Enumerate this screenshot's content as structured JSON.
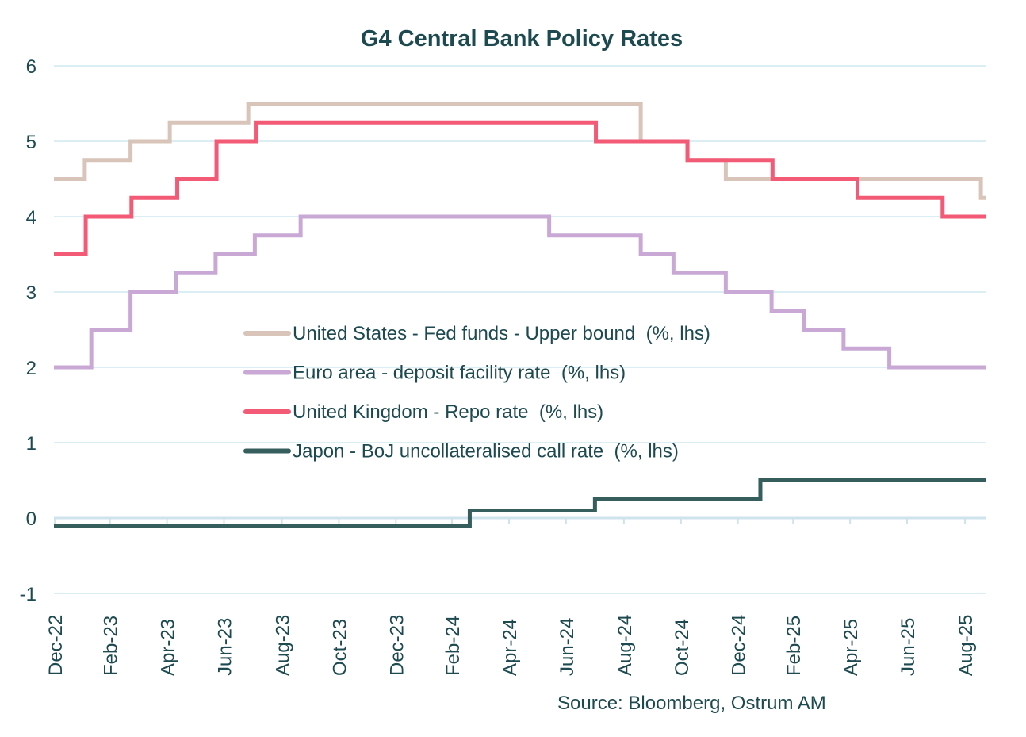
{
  "chart_data": {
    "type": "line",
    "step": true,
    "title": "G4 Central Bank Policy Rates",
    "source": "Source: Bloomberg, Ostrum AM",
    "xlabel": "",
    "ylabel": "",
    "xlim": [
      "2022-12-30",
      "2025-09-22"
    ],
    "ylim": [
      -1,
      6
    ],
    "y_ticks": [
      6,
      5,
      4,
      3,
      2,
      1,
      0,
      -1
    ],
    "x_ticks": [
      {
        "date": "2022-12-31",
        "label": "Dec-22"
      },
      {
        "date": "2023-02-28",
        "label": "Feb-23"
      },
      {
        "date": "2023-04-30",
        "label": "Apr-23"
      },
      {
        "date": "2023-06-30",
        "label": "Jun-23"
      },
      {
        "date": "2023-08-31",
        "label": "Aug-23"
      },
      {
        "date": "2023-10-31",
        "label": "Oct-23"
      },
      {
        "date": "2023-12-31",
        "label": "Dec-23"
      },
      {
        "date": "2024-02-29",
        "label": "Feb-24"
      },
      {
        "date": "2024-04-30",
        "label": "Apr-24"
      },
      {
        "date": "2024-06-30",
        "label": "Jun-24"
      },
      {
        "date": "2024-08-31",
        "label": "Aug-24"
      },
      {
        "date": "2024-10-31",
        "label": "Oct-24"
      },
      {
        "date": "2024-12-31",
        "label": "Dec-24"
      },
      {
        "date": "2025-02-28",
        "label": "Feb-25"
      },
      {
        "date": "2025-04-30",
        "label": "Apr-25"
      },
      {
        "date": "2025-06-30",
        "label": "Jun-25"
      },
      {
        "date": "2025-08-31",
        "label": "Aug-25"
      }
    ],
    "grid": true,
    "legend_position": "center",
    "series": [
      {
        "name": "United States - Fed funds - Upper bound  (%, lhs)",
        "color": "#d8c4b8",
        "steps": [
          [
            "2022-12-30",
            4.5
          ],
          [
            "2023-02-01",
            4.75
          ],
          [
            "2023-03-22",
            5.0
          ],
          [
            "2023-05-03",
            5.25
          ],
          [
            "2023-07-26",
            5.5
          ],
          [
            "2024-09-18",
            5.0
          ],
          [
            "2024-11-07",
            4.75
          ],
          [
            "2024-12-18",
            4.5
          ],
          [
            "2025-09-17",
            4.25
          ]
        ]
      },
      {
        "name": "Euro area - deposit facility rate  (%, lhs)",
        "color": "#c9a8d6",
        "steps": [
          [
            "2022-12-30",
            2.0
          ],
          [
            "2023-02-08",
            2.5
          ],
          [
            "2023-03-22",
            3.0
          ],
          [
            "2023-05-10",
            3.25
          ],
          [
            "2023-06-21",
            3.5
          ],
          [
            "2023-08-02",
            3.75
          ],
          [
            "2023-09-20",
            4.0
          ],
          [
            "2024-06-12",
            3.75
          ],
          [
            "2024-09-18",
            3.5
          ],
          [
            "2024-10-23",
            3.25
          ],
          [
            "2024-12-18",
            3.0
          ],
          [
            "2025-02-05",
            2.75
          ],
          [
            "2025-03-12",
            2.5
          ],
          [
            "2025-04-23",
            2.25
          ],
          [
            "2025-06-11",
            2.0
          ]
        ]
      },
      {
        "name": "United Kingdom - Repo rate  (%, lhs)",
        "color": "#f25a75",
        "steps": [
          [
            "2022-12-30",
            3.5
          ],
          [
            "2023-02-02",
            4.0
          ],
          [
            "2023-03-23",
            4.25
          ],
          [
            "2023-05-11",
            4.5
          ],
          [
            "2023-06-22",
            5.0
          ],
          [
            "2023-08-03",
            5.25
          ],
          [
            "2024-08-01",
            5.0
          ],
          [
            "2024-11-07",
            4.75
          ],
          [
            "2025-02-06",
            4.5
          ],
          [
            "2025-05-08",
            4.25
          ],
          [
            "2025-08-07",
            4.0
          ]
        ]
      },
      {
        "name": "Japon - BoJ uncollateralised call rate  (%, lhs)",
        "color": "#355e5c",
        "steps": [
          [
            "2022-12-30",
            -0.1
          ],
          [
            "2024-03-19",
            0.1
          ],
          [
            "2024-07-31",
            0.25
          ],
          [
            "2025-01-24",
            0.5
          ]
        ]
      }
    ]
  }
}
